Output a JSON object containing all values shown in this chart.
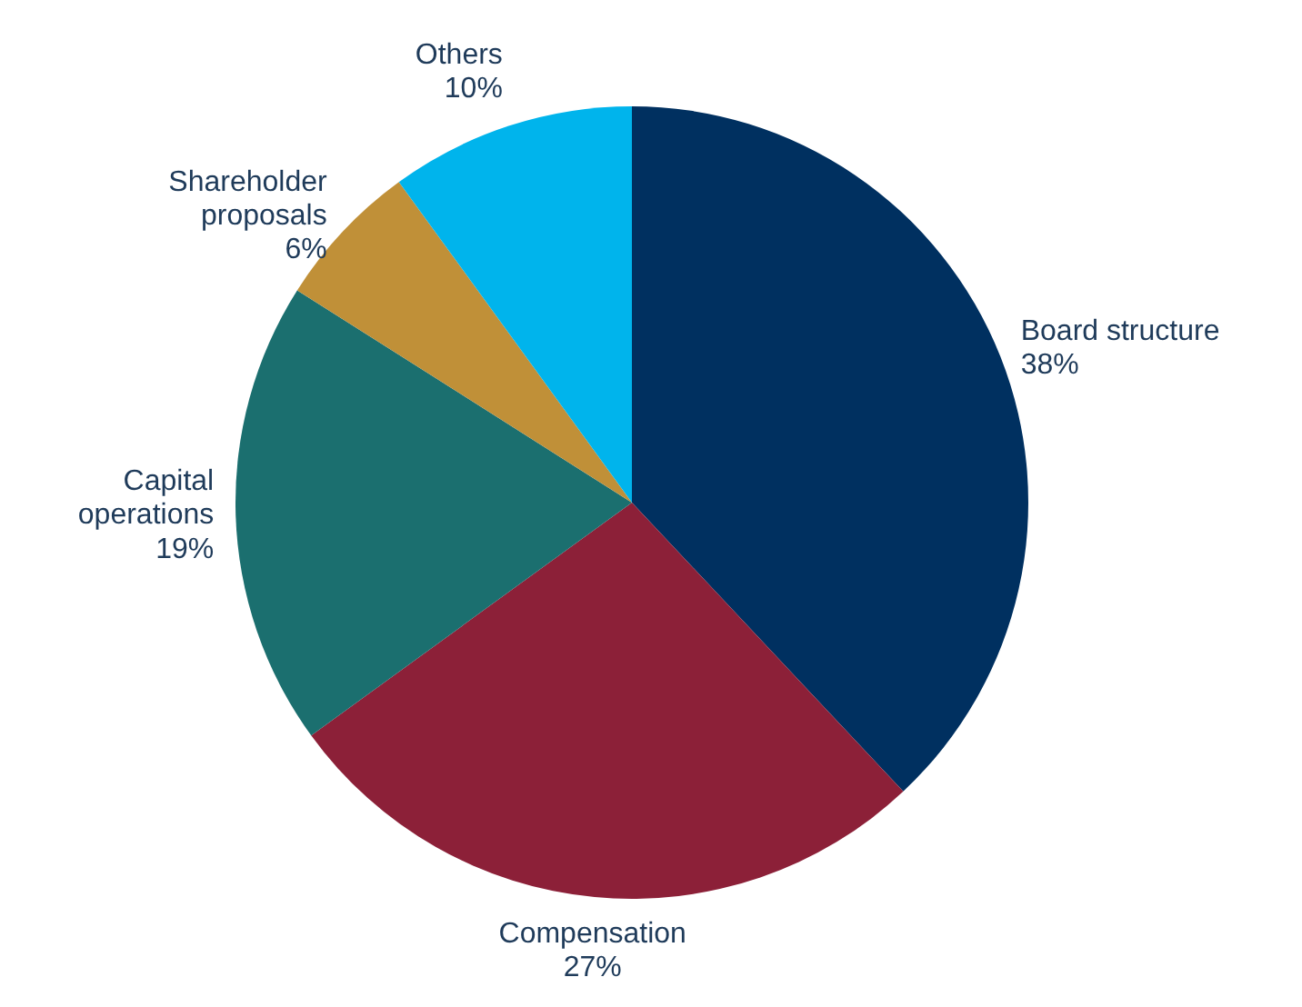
{
  "chart_data": {
    "type": "pie",
    "categories": [
      "Board structure",
      "Compensation",
      "Capital operations",
      "Shareholder proposals",
      "Others"
    ],
    "values": [
      38,
      27,
      19,
      6,
      10
    ],
    "colors": [
      "#003060",
      "#8c2038",
      "#1b6f6f",
      "#c09038",
      "#00b4ec"
    ],
    "value_labels": [
      "38%",
      "27%",
      "19%",
      "6%",
      "10%"
    ]
  }
}
